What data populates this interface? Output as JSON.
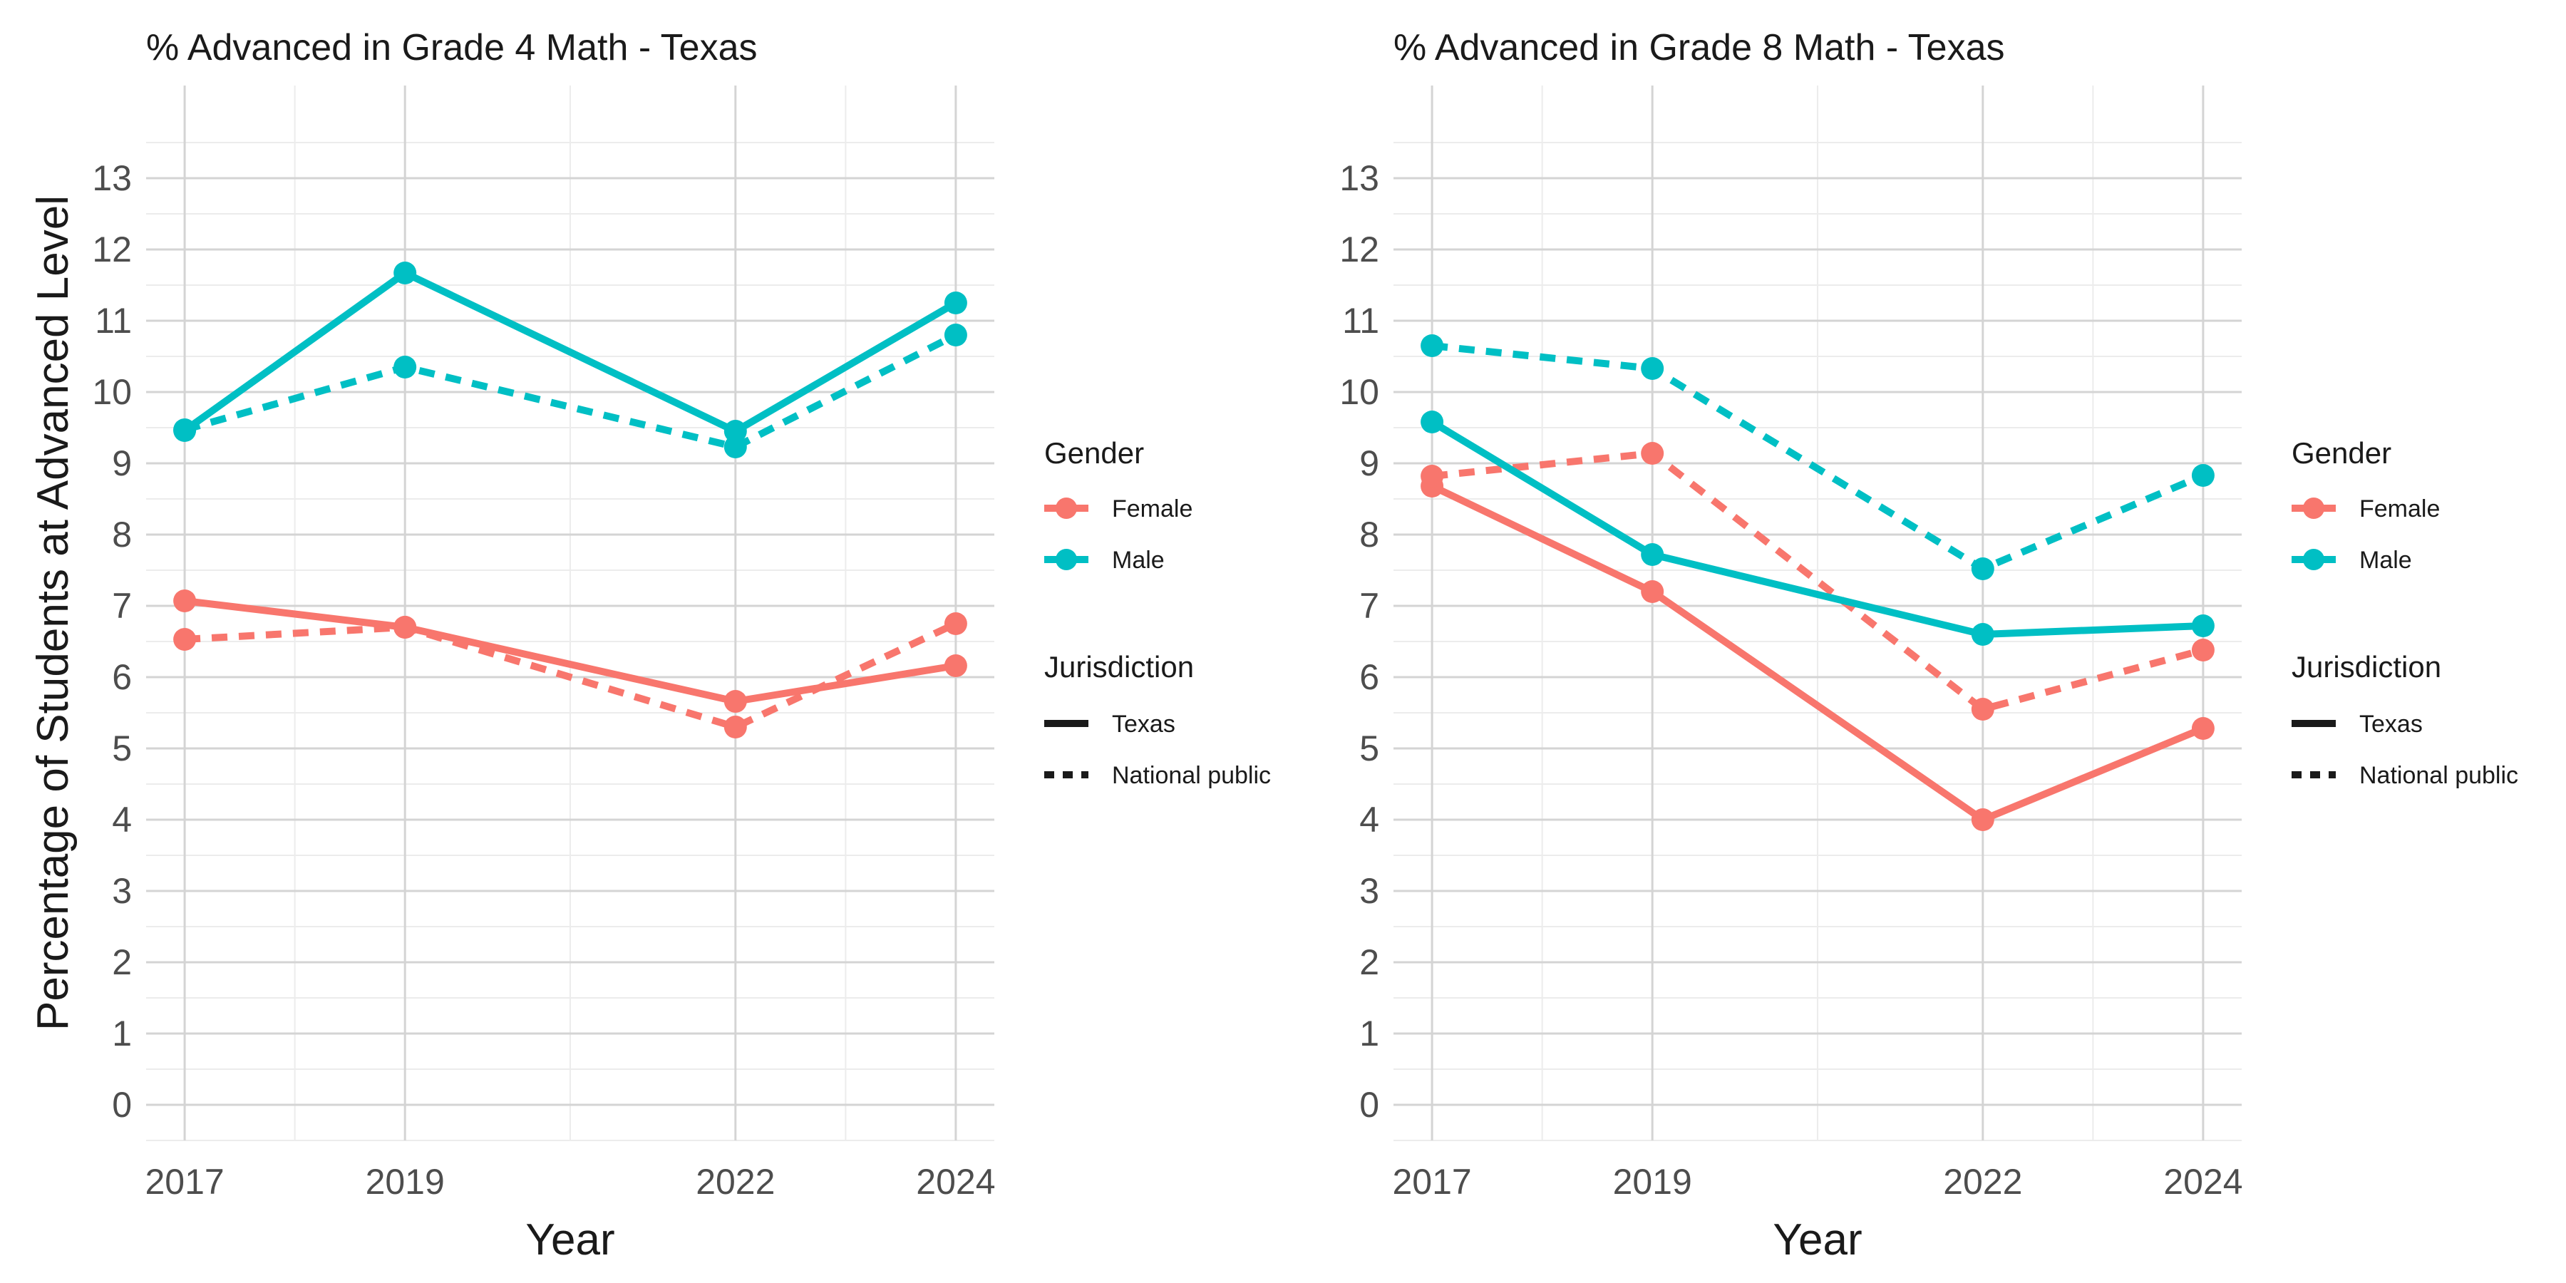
{
  "colors": {
    "female": "#F8766D",
    "male": "#00BFC4",
    "grid_major": "#d4d4d4",
    "grid_minor": "#ececec",
    "text": "#1a1a1a",
    "tick_text": "#4d4d4d"
  },
  "y_axis_label": "Percentage of Students at Advanced Level",
  "legend": {
    "gender_title": "Gender",
    "gender_items": [
      "Female",
      "Male"
    ],
    "jurisdiction_title": "Jurisdiction",
    "jurisdiction_items": [
      "Texas",
      "National public"
    ]
  },
  "chart_data": [
    {
      "type": "line",
      "title": "% Advanced in Grade 4 Math - Texas",
      "xlabel": "Year",
      "ylabel": "Percentage of Students at Advanced Level",
      "x": [
        2017,
        2019,
        2022,
        2024
      ],
      "xlim": [
        2016.65,
        2024.35
      ],
      "ylim": [
        -0.5,
        14.3
      ],
      "yticks": [
        0,
        1,
        2,
        3,
        4,
        5,
        6,
        7,
        8,
        9,
        10,
        11,
        12,
        13
      ],
      "grid": true,
      "legend_position": "right",
      "series": [
        {
          "gender": "Female",
          "jurisdiction": "Texas",
          "values": [
            7.07,
            6.7,
            5.66,
            6.16
          ]
        },
        {
          "gender": "Female",
          "jurisdiction": "National public",
          "values": [
            6.53,
            6.7,
            5.3,
            6.75
          ]
        },
        {
          "gender": "Male",
          "jurisdiction": "Texas",
          "values": [
            9.46,
            11.67,
            9.45,
            11.25
          ]
        },
        {
          "gender": "Male",
          "jurisdiction": "National public",
          "values": [
            9.47,
            10.35,
            9.23,
            10.8
          ]
        }
      ]
    },
    {
      "type": "line",
      "title": "% Advanced in Grade 8 Math - Texas",
      "xlabel": "Year",
      "ylabel": "",
      "x": [
        2017,
        2019,
        2022,
        2024
      ],
      "xlim": [
        2016.65,
        2024.35
      ],
      "ylim": [
        -0.5,
        14.3
      ],
      "yticks": [
        0,
        1,
        2,
        3,
        4,
        5,
        6,
        7,
        8,
        9,
        10,
        11,
        12,
        13
      ],
      "grid": true,
      "legend_position": "right",
      "series": [
        {
          "gender": "Female",
          "jurisdiction": "Texas",
          "values": [
            8.68,
            7.2,
            4.0,
            5.28
          ]
        },
        {
          "gender": "Female",
          "jurisdiction": "National public",
          "values": [
            8.82,
            9.14,
            5.55,
            6.38
          ]
        },
        {
          "gender": "Male",
          "jurisdiction": "Texas",
          "values": [
            9.58,
            7.72,
            6.6,
            6.72
          ]
        },
        {
          "gender": "Male",
          "jurisdiction": "National public",
          "values": [
            10.65,
            10.33,
            7.52,
            8.83
          ]
        }
      ]
    }
  ]
}
